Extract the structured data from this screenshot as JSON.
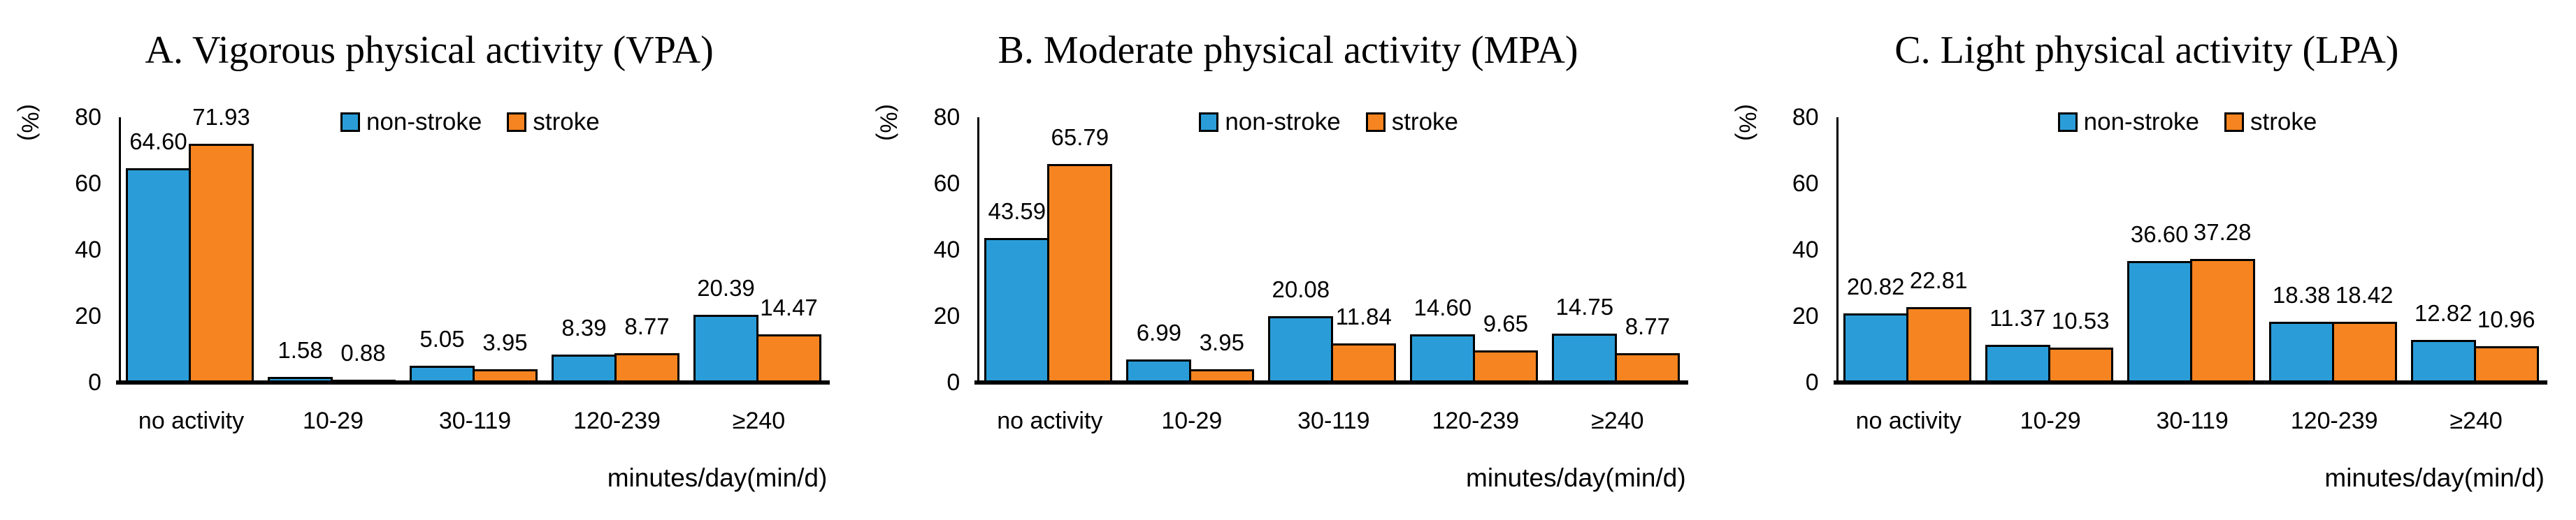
{
  "legend": {
    "items": [
      {
        "label": "non-stroke",
        "color": "#2A9DD8"
      },
      {
        "label": "stroke",
        "color": "#F68420"
      }
    ]
  },
  "axis": {
    "line_color": "#000000",
    "background": "#FFFFFF"
  },
  "chart_data": [
    {
      "type": "bar",
      "title": "A. Vigorous physical activity (VPA)",
      "ylabel": "(%)",
      "xlabel": "minutes/day(min/d)",
      "ylim": [
        0,
        80
      ],
      "yticks": [
        0,
        20,
        40,
        60,
        80
      ],
      "grid": false,
      "legend_position": "top-center",
      "categories": [
        "no activity",
        "10-29",
        "30-119",
        "120-239",
        "≥240"
      ],
      "series": [
        {
          "name": "non-stroke",
          "color": "#2A9DD8",
          "values": [
            64.6,
            1.58,
            5.05,
            8.39,
            20.39
          ],
          "value_labels": [
            "64.60",
            "1.58",
            "5.05",
            "8.39",
            "20.39"
          ]
        },
        {
          "name": "stroke",
          "color": "#F68420",
          "values": [
            71.93,
            0.88,
            3.95,
            8.77,
            14.47
          ],
          "value_labels": [
            "71.93",
            "0.88",
            "3.95",
            "8.77",
            "14.47"
          ]
        }
      ]
    },
    {
      "type": "bar",
      "title": "B. Moderate physical activity (MPA)",
      "ylabel": "(%)",
      "xlabel": "minutes/day(min/d)",
      "ylim": [
        0,
        80
      ],
      "yticks": [
        0,
        20,
        40,
        60,
        80
      ],
      "grid": false,
      "legend_position": "top-center",
      "categories": [
        "no activity",
        "10-29",
        "30-119",
        "120-239",
        "≥240"
      ],
      "series": [
        {
          "name": "non-stroke",
          "color": "#2A9DD8",
          "values": [
            43.59,
            6.99,
            20.08,
            14.6,
            14.75
          ],
          "value_labels": [
            "43.59",
            "6.99",
            "20.08",
            "14.60",
            "14.75"
          ]
        },
        {
          "name": "stroke",
          "color": "#F68420",
          "values": [
            65.79,
            3.95,
            11.84,
            9.65,
            8.77
          ],
          "value_labels": [
            "65.79",
            "3.95",
            "11.84",
            "9.65",
            "8.77"
          ]
        }
      ]
    },
    {
      "type": "bar",
      "title": "C. Light physical activity (LPA)",
      "ylabel": "(%)",
      "xlabel": "minutes/day(min/d)",
      "ylim": [
        0,
        80
      ],
      "yticks": [
        0,
        20,
        40,
        60,
        80
      ],
      "grid": false,
      "legend_position": "top-center",
      "categories": [
        "no activity",
        "10-29",
        "30-119",
        "120-239",
        "≥240"
      ],
      "series": [
        {
          "name": "non-stroke",
          "color": "#2A9DD8",
          "values": [
            20.82,
            11.37,
            36.6,
            18.38,
            12.82
          ],
          "value_labels": [
            "20.82",
            "11.37",
            "36.60",
            "18.38",
            "12.82"
          ]
        },
        {
          "name": "stroke",
          "color": "#F68420",
          "values": [
            22.81,
            10.53,
            37.28,
            18.42,
            10.96
          ],
          "value_labels": [
            "22.81",
            "10.53",
            "37.28",
            "18.42",
            "10.96"
          ]
        }
      ]
    }
  ]
}
